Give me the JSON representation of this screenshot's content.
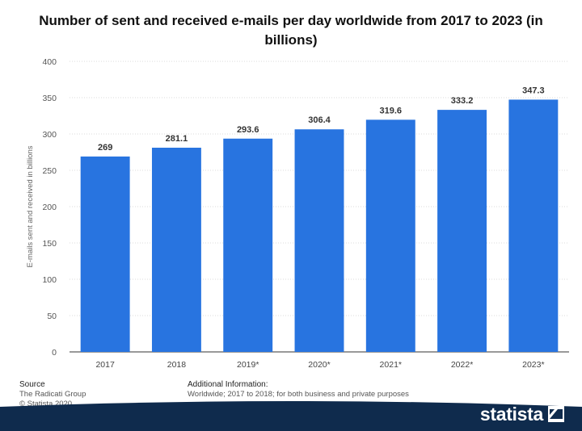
{
  "chart_data": {
    "type": "bar",
    "title": "Number of sent and received e-mails per day worldwide from 2017 to 2023 (in billions)",
    "xlabel": "",
    "ylabel": "E-mails sent and received in billions",
    "categories": [
      "2017",
      "2018",
      "2019*",
      "2020*",
      "2021*",
      "2022*",
      "2023*"
    ],
    "values": [
      269,
      281.1,
      293.6,
      306.4,
      319.6,
      333.2,
      347.3
    ],
    "value_labels": [
      "269",
      "281.1",
      "293.6",
      "306.4",
      "319.6",
      "333.2",
      "347.3"
    ],
    "ylim": [
      0,
      400
    ],
    "yticks": [
      0,
      50,
      100,
      150,
      200,
      250,
      300,
      350,
      400
    ],
    "grid": true,
    "bar_color": "#2874e0"
  },
  "footer": {
    "source_heading": "Source",
    "source_name": "The Radicati Group",
    "copyright": "© Statista 2020",
    "info_heading": "Additional Information:",
    "info_text": "Worldwide; 2017 to 2018; for both business and private purposes"
  },
  "brand": {
    "name": "statista",
    "color": "#0f2b4d"
  }
}
